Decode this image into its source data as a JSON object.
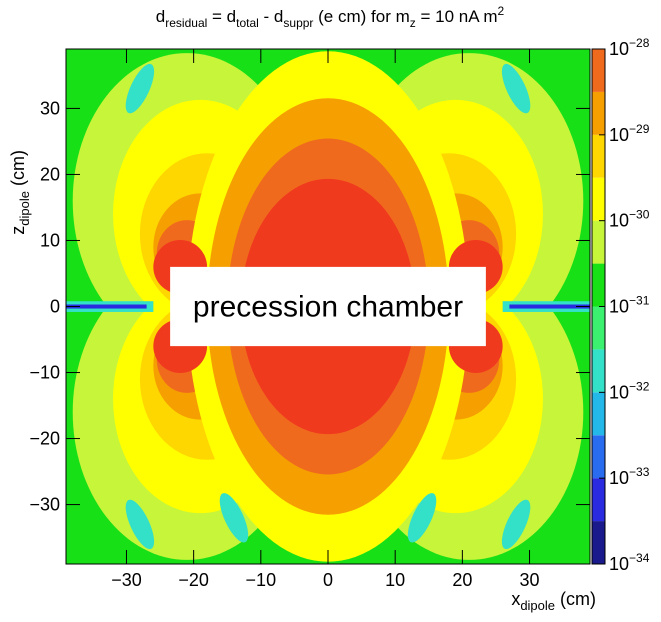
{
  "chart_data": {
    "type": "heatmap",
    "title": {
      "base": "d",
      "base_sub": "residual",
      "eq1": " = d",
      "sub1": "total",
      "mid": " - d",
      "sub2": "suppr",
      "tail1": "  (e cm) for m",
      "sub3": "z",
      "tail2": " = 10 nA m",
      "sup": "2"
    },
    "xlabel": {
      "base": "x",
      "sub": "dipole",
      "unit": " (cm)"
    },
    "ylabel": {
      "base": "z",
      "sub": "dipole",
      "unit": " (cm)"
    },
    "xlim": [
      -39,
      39
    ],
    "ylim": [
      -39,
      39
    ],
    "xticks": [
      -30,
      -20,
      -10,
      0,
      10,
      20,
      30
    ],
    "yticks": [
      -30,
      -20,
      -10,
      0,
      10,
      20,
      30
    ],
    "colorbar": {
      "scale": "log",
      "range": [
        1e-34,
        1e-28
      ],
      "ticks": [
        {
          "value": -28,
          "base": "10",
          "exp": "−28"
        },
        {
          "value": -29,
          "base": "10",
          "exp": "−29"
        },
        {
          "value": -30,
          "base": "10",
          "exp": "−30"
        },
        {
          "value": -31,
          "base": "10",
          "exp": "−31"
        },
        {
          "value": -32,
          "base": "10",
          "exp": "−32"
        },
        {
          "value": -33,
          "base": "10",
          "exp": "−33"
        },
        {
          "value": -34,
          "base": "10",
          "exp": "−34"
        }
      ],
      "levels": [
        {
          "lo": -34.0,
          "hi": -33.5,
          "color": "#1a1a8c"
        },
        {
          "lo": -33.5,
          "hi": -33.0,
          "color": "#2a2ae0"
        },
        {
          "lo": -33.0,
          "hi": -32.5,
          "color": "#2a6cf0"
        },
        {
          "lo": -32.5,
          "hi": -32.0,
          "color": "#24b8e8"
        },
        {
          "lo": -32.0,
          "hi": -31.5,
          "color": "#33e0c8"
        },
        {
          "lo": -31.5,
          "hi": -31.0,
          "color": "#3cf070"
        },
        {
          "lo": -31.0,
          "hi": -30.5,
          "color": "#17e017"
        },
        {
          "lo": -30.5,
          "hi": -30.0,
          "color": "#c6f53a"
        },
        {
          "lo": -30.0,
          "hi": -29.5,
          "color": "#ffff00"
        },
        {
          "lo": -29.5,
          "hi": -29.0,
          "color": "#ffd700"
        },
        {
          "lo": -29.0,
          "hi": -28.5,
          "color": "#f5a000"
        },
        {
          "lo": -28.5,
          "hi": -28.0,
          "color": "#f06a1e"
        },
        {
          "lo": -28.0,
          "hi": -27.0,
          "color": "#f03a1e"
        }
      ]
    },
    "annotation": "precession chamber",
    "chamber_region": {
      "x": [
        -23.5,
        23.5
      ],
      "z": [
        -6,
        6
      ]
    }
  }
}
